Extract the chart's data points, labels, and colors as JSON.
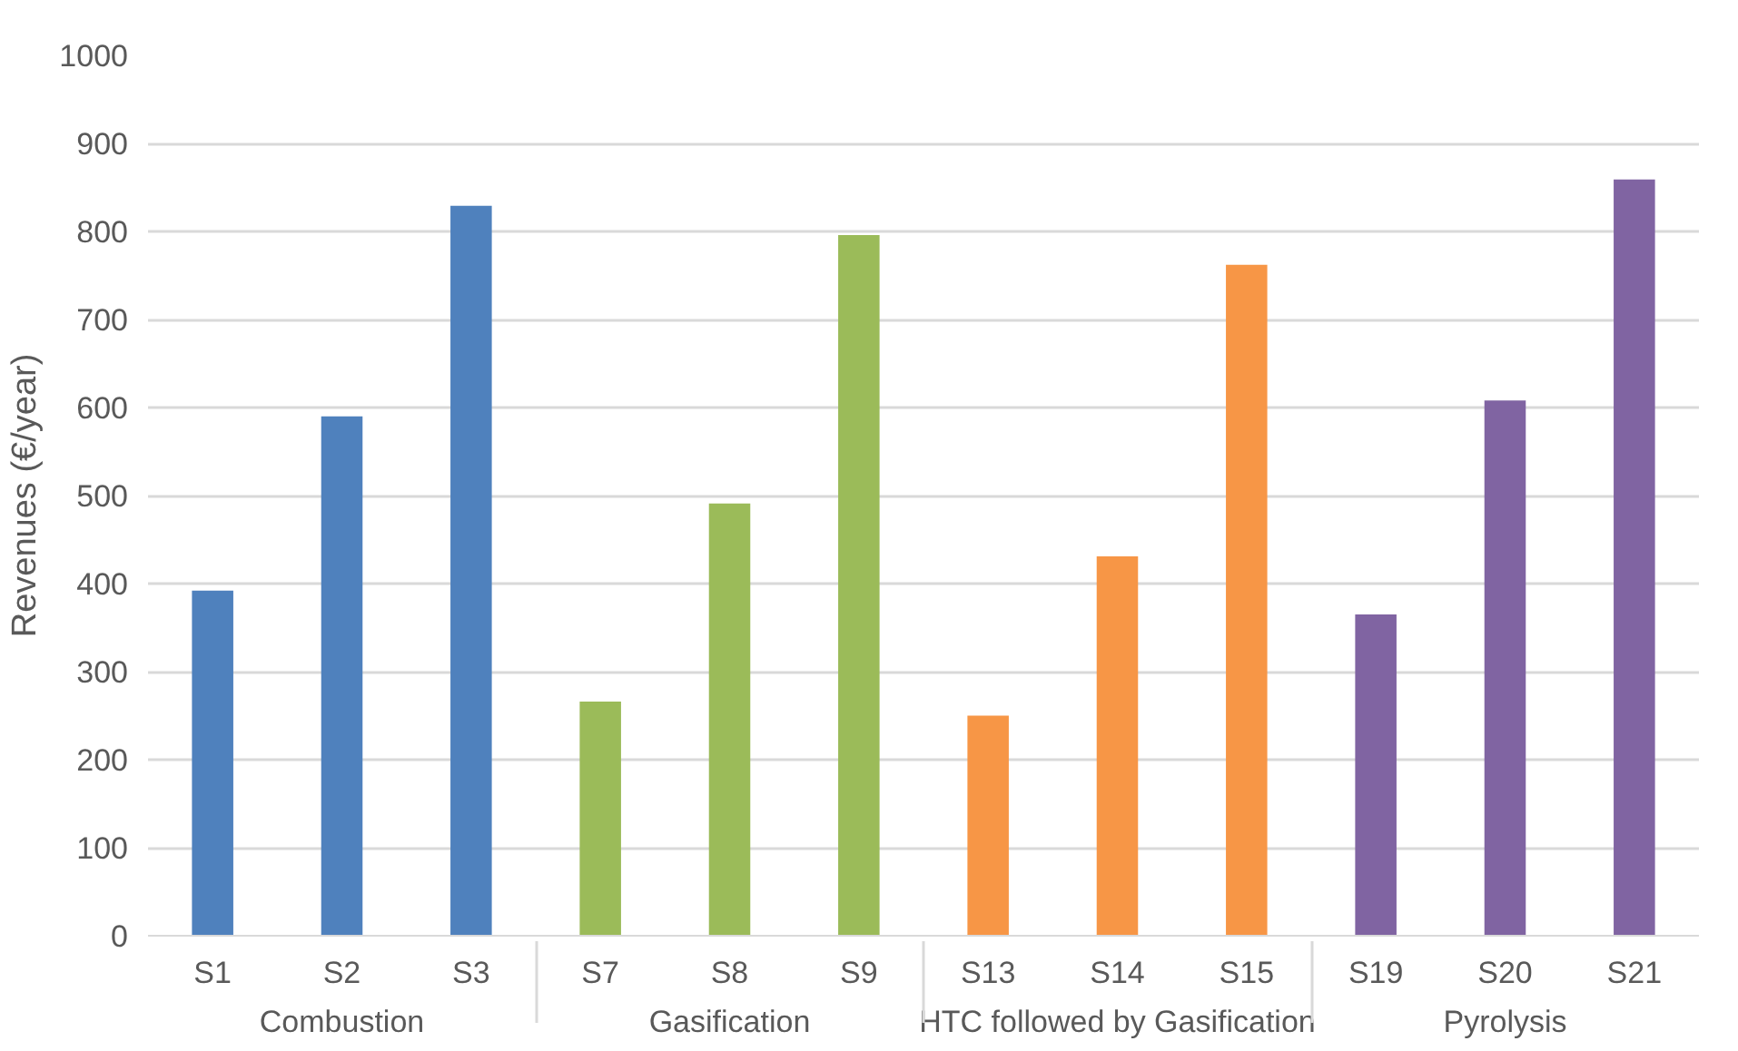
{
  "chart_data": {
    "type": "bar",
    "ylabel": "Revenues (€/year)",
    "categories": [
      "S1",
      "S2",
      "S3",
      "S7",
      "S8",
      "S9",
      "S13",
      "S14",
      "S15",
      "S19",
      "S20",
      "S21"
    ],
    "series": [
      {
        "name": "Combustion",
        "color": "#4f81bd",
        "values": [
          392,
          590,
          829,
          null,
          null,
          null,
          null,
          null,
          null,
          null,
          null,
          null
        ]
      },
      {
        "name": "Gasification",
        "color": "#9bbb59",
        "values": [
          null,
          null,
          null,
          266,
          491,
          796,
          null,
          null,
          null,
          null,
          null,
          null
        ]
      },
      {
        "name": "HTC followed by Gasification",
        "color": "#f79646",
        "values": [
          null,
          null,
          null,
          null,
          null,
          null,
          250,
          431,
          762,
          null,
          null,
          null
        ]
      },
      {
        "name": "Pyrolysis",
        "color": "#8064a2",
        "values": [
          null,
          null,
          null,
          null,
          null,
          null,
          null,
          null,
          null,
          365,
          608,
          859
        ]
      }
    ],
    "ylim": [
      0,
      1000
    ],
    "yticks": [
      0,
      100,
      200,
      300,
      400,
      500,
      600,
      700,
      800,
      900,
      1000
    ],
    "grid": "y"
  }
}
